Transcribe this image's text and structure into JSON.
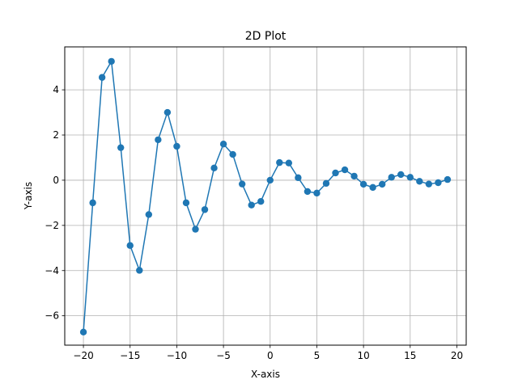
{
  "chart_data": {
    "type": "line",
    "title": "2D Plot",
    "xlabel": "X-axis",
    "ylabel": "Y-axis",
    "xlim": [
      -22,
      21
    ],
    "ylim": [
      -7.3,
      5.9
    ],
    "xticks": [
      -20,
      -15,
      -10,
      -5,
      0,
      5,
      10,
      15,
      20
    ],
    "yticks": [
      -6,
      -4,
      -2,
      0,
      2,
      4
    ],
    "grid": true,
    "legend": "none",
    "series": [
      {
        "color": "#1f77b4",
        "marker": "circle",
        "x": [
          -20,
          -19,
          -18,
          -17,
          -16,
          -15,
          -14,
          -13,
          -12,
          -11,
          -10,
          -9,
          -8,
          -7,
          -6,
          -5,
          -4,
          -3,
          -2,
          -1,
          0,
          1,
          2,
          3,
          4,
          5,
          6,
          7,
          8,
          9,
          10,
          11,
          12,
          13,
          14,
          15,
          16,
          17,
          18,
          19
        ],
        "y": [
          -6.72,
          -1.0,
          4.55,
          5.26,
          1.44,
          -2.89,
          -3.99,
          -1.52,
          1.79,
          3.0,
          1.5,
          -1.0,
          -2.17,
          -1.3,
          0.54,
          1.6,
          1.14,
          -0.17,
          -1.1,
          -0.94,
          0.0,
          0.78,
          0.76,
          0.11,
          -0.5,
          -0.57,
          -0.14,
          0.32,
          0.46,
          0.18,
          -0.18,
          -0.32,
          -0.18,
          0.13,
          0.25,
          0.13,
          -0.05,
          -0.17,
          -0.11,
          0.03
        ]
      }
    ]
  }
}
